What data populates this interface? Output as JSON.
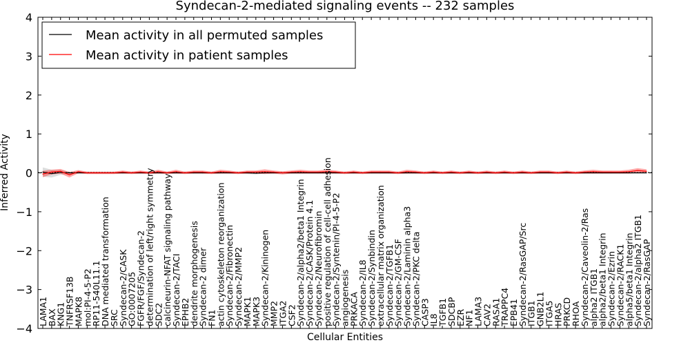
{
  "chart_data": {
    "type": "line",
    "title": "Syndecan-2-mediated signaling events -- 232 samples",
    "xlabel": "Cellular Entities",
    "ylabel": "Inferred Activity",
    "ylim": [
      -4,
      4
    ],
    "yticks": [
      -4,
      -3,
      -2,
      -1,
      0,
      1,
      2,
      3,
      4
    ],
    "ytick_labels": [
      "−4",
      "−3",
      "−2",
      "−1",
      "0",
      "1",
      "2",
      "3",
      "4"
    ],
    "legend_position": "top-left",
    "categories": [
      "LAMA1",
      "BAX",
      "KNG1",
      "TNFRSF13B",
      "MAPK8",
      "mol:PI-4-5-P2",
      "RP11-540L11.1",
      "DNA mediated transformation",
      "SRC",
      "Syndecan-2/CASK",
      "GO:0007205",
      "FGFR/FGF/Syndecan-2",
      "determination of left/right symmetry",
      "SDC2",
      "calcineurin-NFAT signaling pathway",
      "Syndecan-2/TACI",
      "EPHB2",
      "dendrite morphogenesis",
      "Syndecan-2 dimer",
      "FN1",
      "actin cytoskeleton reorganization",
      "Syndecan-2/Fibronectin",
      "Syndecan-2/MMP2",
      "MAPK1",
      "MAPK3",
      "Syndecan-2/Kininogen",
      "MMP2",
      "ITGA2",
      "CSF2",
      "Syndecan-2/alpha2/beta1 Integrin",
      "Syndecan-2/CASK/Protein 4.1",
      "Syndecan-2/Neurofibromin",
      "positive regulation of cell-cell adhesion",
      "Syndecan-2/Syntenin/PI-4-5-P2",
      "angiogenesis",
      "PRKACA",
      "Syndecan-2/IL8",
      "Syndecan-2/Synbindin",
      "extracellular matrix organization",
      "Syndecan-2/TGFB1",
      "Syndecan-2/GM-CSF",
      "Syndecan-2/Laminin alpha3",
      "Syndecan-2/PKC delta",
      "CASP3",
      "IL8",
      "TGFB1",
      "SDCBP",
      "EZR",
      "NF1",
      "LAMA3",
      "CAV2",
      "RASA1",
      "TRAPPC4",
      "EPB41",
      "Syndecan-2/RasGAP/Src",
      "ITGB1",
      "GNB2L1",
      "ITGA5",
      "HRAS",
      "PRKCD",
      "RHOA",
      "Syndecan-2/Caveolin-2/Ras",
      "alpha2 ITGB1",
      "alpha2/beta1 Integrin",
      "Syndecan-2/Ezrin",
      "Syndecan-2/RACK1",
      "alpha5/beta1 Integrin",
      "Syndecan-2/alpha2 ITGB1",
      "Syndecan-2/RasGAP"
    ],
    "series": [
      {
        "name": "Mean activity in all permuted samples",
        "color": "#000000",
        "values": [
          0.02,
          -0.02,
          0.01,
          0.0,
          0.0,
          0.0,
          0.0,
          0.0,
          0.0,
          0.0,
          0.0,
          0.0,
          0.0,
          0.0,
          0.0,
          0.0,
          0.0,
          0.0,
          0.0,
          0.0,
          0.0,
          0.0,
          0.0,
          0.0,
          -0.01,
          0.0,
          0.0,
          0.0,
          0.0,
          0.0,
          0.0,
          0.0,
          0.0,
          0.0,
          0.0,
          0.0,
          0.0,
          0.0,
          0.0,
          0.0,
          0.0,
          0.0,
          0.0,
          0.0,
          0.0,
          0.0,
          0.0,
          0.0,
          0.0,
          0.0,
          0.0,
          0.0,
          0.0,
          0.0,
          0.0,
          0.0,
          0.0,
          0.0,
          0.0,
          0.0,
          0.0,
          0.0,
          0.0,
          0.0,
          0.0,
          0.0,
          0.0,
          0.0,
          0.0
        ],
        "band": [
          0.12,
          0.1,
          0.06,
          0.03,
          0.02,
          0.02,
          0.02,
          0.02,
          0.02,
          0.02,
          0.02,
          0.02,
          0.02,
          0.02,
          0.02,
          0.02,
          0.02,
          0.02,
          0.02,
          0.02,
          0.02,
          0.02,
          0.02,
          0.03,
          0.03,
          0.02,
          0.02,
          0.02,
          0.02,
          0.02,
          0.02,
          0.02,
          0.02,
          0.02,
          0.02,
          0.02,
          0.02,
          0.02,
          0.02,
          0.02,
          0.02,
          0.02,
          0.02,
          0.02,
          0.02,
          0.02,
          0.02,
          0.02,
          0.02,
          0.02,
          0.02,
          0.02,
          0.02,
          0.02,
          0.02,
          0.02,
          0.02,
          0.02,
          0.02,
          0.02,
          0.02,
          0.02,
          0.02,
          0.02,
          0.02,
          0.02,
          0.02,
          0.02,
          0.02
        ]
      },
      {
        "name": "Mean activity in patient samples",
        "color": "#ff0000",
        "values": [
          -0.03,
          0.02,
          0.04,
          -0.05,
          0.03,
          0.0,
          0.0,
          0.0,
          0.0,
          0.02,
          0.0,
          0.02,
          0.0,
          0.03,
          0.0,
          0.03,
          0.0,
          0.02,
          0.02,
          0.0,
          0.03,
          0.02,
          0.0,
          0.02,
          0.02,
          0.03,
          0.02,
          0.0,
          0.02,
          0.03,
          0.02,
          0.02,
          0.03,
          0.02,
          0.0,
          0.02,
          0.0,
          0.02,
          0.02,
          0.02,
          0.0,
          0.03,
          0.02,
          0.0,
          0.02,
          0.0,
          0.02,
          0.0,
          0.02,
          0.0,
          0.02,
          0.0,
          0.02,
          0.0,
          0.02,
          0.0,
          0.02,
          0.02,
          0.0,
          0.02,
          0.0,
          0.02,
          0.03,
          0.02,
          0.02,
          0.02,
          0.03,
          0.06,
          0.04
        ],
        "band": [
          0.08,
          0.06,
          0.06,
          0.07,
          0.04,
          0.03,
          0.03,
          0.03,
          0.03,
          0.04,
          0.03,
          0.04,
          0.03,
          0.05,
          0.03,
          0.05,
          0.03,
          0.04,
          0.04,
          0.03,
          0.05,
          0.04,
          0.03,
          0.04,
          0.04,
          0.06,
          0.04,
          0.04,
          0.04,
          0.05,
          0.04,
          0.04,
          0.05,
          0.04,
          0.03,
          0.04,
          0.03,
          0.04,
          0.04,
          0.04,
          0.03,
          0.05,
          0.04,
          0.03,
          0.04,
          0.03,
          0.04,
          0.03,
          0.04,
          0.03,
          0.04,
          0.03,
          0.04,
          0.03,
          0.04,
          0.03,
          0.04,
          0.04,
          0.03,
          0.04,
          0.03,
          0.04,
          0.05,
          0.04,
          0.04,
          0.04,
          0.05,
          0.06,
          0.05
        ]
      }
    ]
  }
}
